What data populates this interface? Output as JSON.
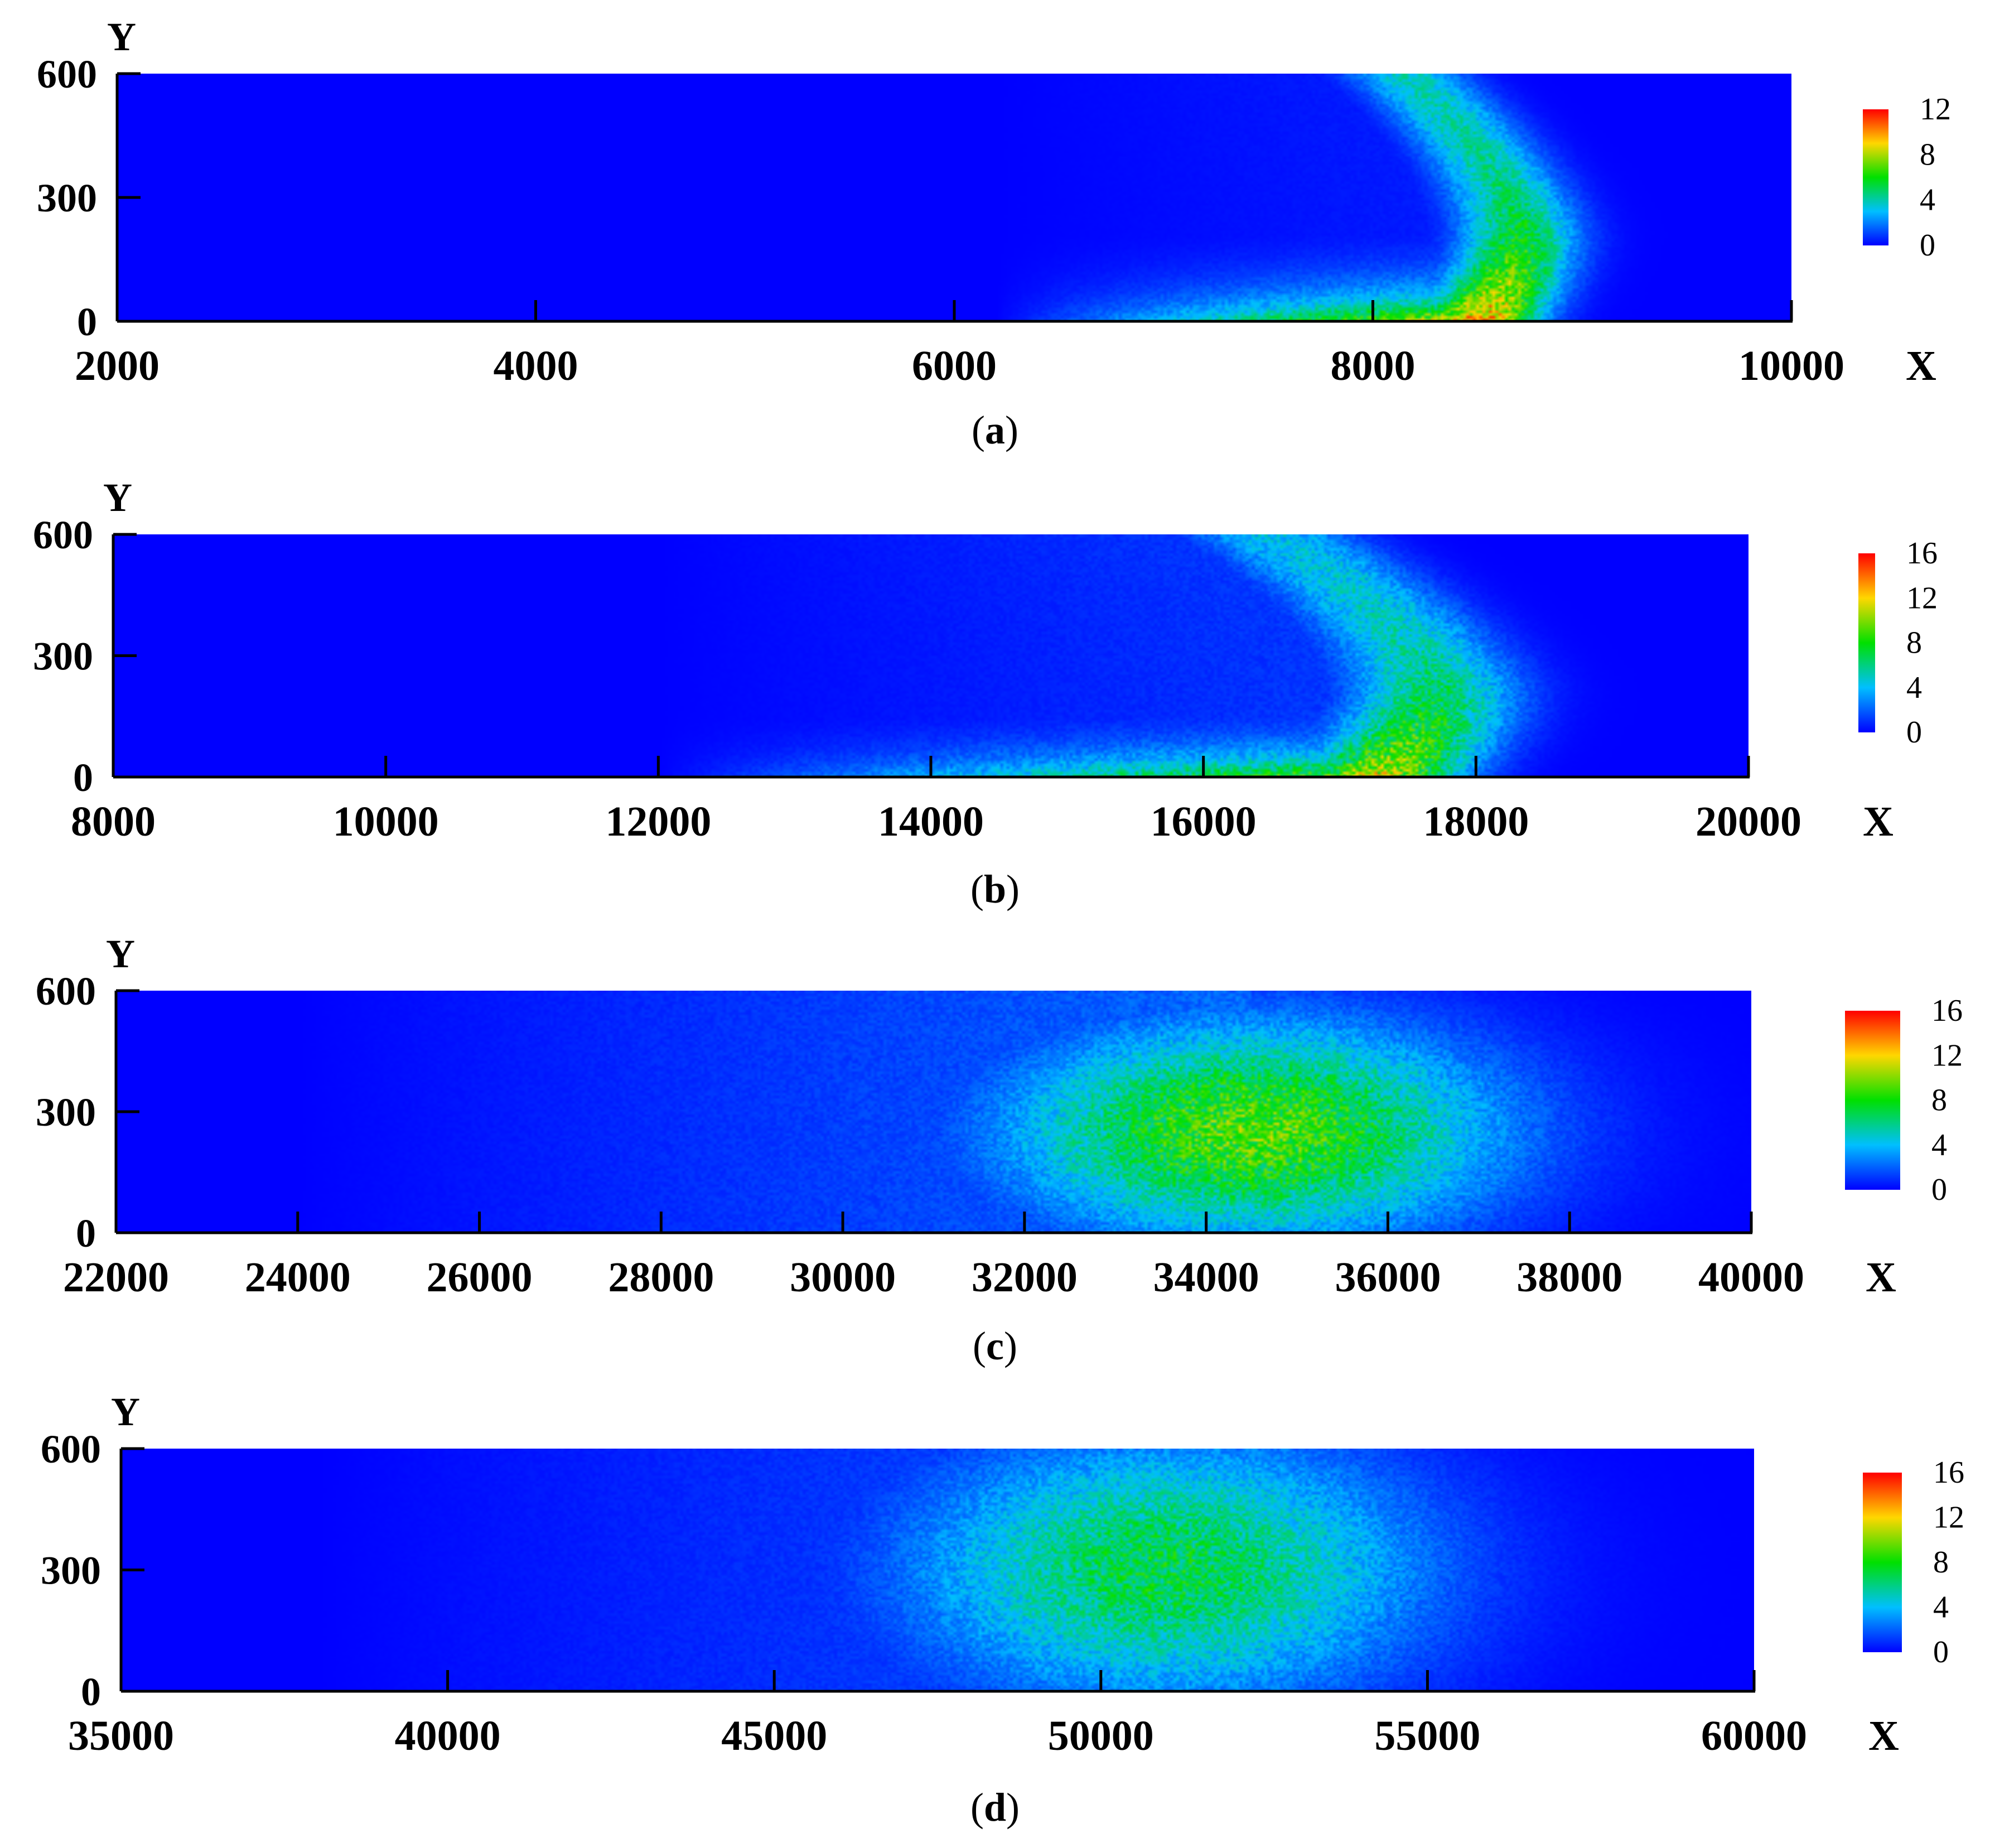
{
  "chart_data": [
    {
      "type": "heatmap",
      "panel_label": [
        "(",
        "a",
        ")"
      ],
      "xlabel": "X",
      "ylabel": "Y",
      "xlim": [
        2000,
        10000
      ],
      "ylim": [
        0,
        600
      ],
      "x_ticks": [
        2000,
        4000,
        6000,
        8000,
        10000
      ],
      "x_tick_labels": [
        "2000",
        "4000",
        "6000",
        "8000",
        "10000"
      ],
      "y_ticks": [
        0,
        300,
        600
      ],
      "y_tick_labels": [
        "0",
        "300",
        "600"
      ],
      "colorbar": {
        "min": 0,
        "max": 12,
        "ticks": [
          0,
          4,
          8,
          12
        ],
        "tick_labels": [
          "0",
          "4",
          "8",
          "12"
        ]
      },
      "field": {
        "peak_value": 10,
        "max_value": 12,
        "front_x": 8700,
        "tail_x": 6200,
        "arc_width_x": 500,
        "arc_thickness_y": 0.3,
        "interior_level": 0.05,
        "noise": 0.25
      }
    },
    {
      "type": "heatmap",
      "panel_label": [
        "(",
        "b",
        ")"
      ],
      "xlabel": "X",
      "ylabel": "Y",
      "xlim": [
        8000,
        20000
      ],
      "ylim": [
        0,
        600
      ],
      "x_ticks": [
        8000,
        10000,
        12000,
        14000,
        16000,
        18000,
        20000
      ],
      "x_tick_labels": [
        "8000",
        "10000",
        "12000",
        "14000",
        "16000",
        "18000",
        "20000"
      ],
      "y_ticks": [
        0,
        300,
        600
      ],
      "y_tick_labels": [
        "0",
        "300",
        "600"
      ],
      "colorbar": {
        "min": 0,
        "max": 16,
        "ticks": [
          0,
          4,
          8,
          12,
          16
        ],
        "tick_labels": [
          "0",
          "4",
          "8",
          "12",
          "16"
        ]
      },
      "field": {
        "peak_value": 11,
        "max_value": 16,
        "front_x": 17700,
        "tail_x": 12000,
        "arc_width_x": 1100,
        "arc_thickness_y": 0.35,
        "interior_level": 0.12,
        "noise": 0.3
      }
    },
    {
      "type": "heatmap",
      "panel_label": [
        "(",
        "c",
        ")"
      ],
      "xlabel": "X",
      "ylabel": "Y",
      "xlim": [
        22000,
        40000
      ],
      "ylim": [
        0,
        600
      ],
      "x_ticks": [
        22000,
        24000,
        26000,
        28000,
        30000,
        32000,
        34000,
        36000,
        38000,
        40000
      ],
      "x_tick_labels": [
        "22000",
        "24000",
        "26000",
        "28000",
        "30000",
        "32000",
        "34000",
        "36000",
        "38000",
        "40000"
      ],
      "y_ticks": [
        0,
        300,
        600
      ],
      "y_tick_labels": [
        "0",
        "300",
        "600"
      ],
      "colorbar": {
        "min": 0,
        "max": 16,
        "ticks": [
          0,
          4,
          8,
          12,
          16
        ],
        "tick_labels": [
          "0",
          "4",
          "8",
          "12",
          "16"
        ]
      },
      "field": {
        "peak_value": 9,
        "max_value": 16,
        "center_x": 34500,
        "center_y": 250,
        "spread_x": 2600,
        "spread_y": 260,
        "tail_x": 24000,
        "tail_level": 0.25,
        "noise": 0.3
      }
    },
    {
      "type": "heatmap",
      "panel_label": [
        "(",
        "d",
        ")"
      ],
      "xlabel": "X",
      "ylabel": "Y",
      "xlim": [
        35000,
        60000
      ],
      "ylim": [
        0,
        600
      ],
      "x_ticks": [
        35000,
        40000,
        45000,
        50000,
        55000,
        60000
      ],
      "x_tick_labels": [
        "35000",
        "40000",
        "45000",
        "50000",
        "55000",
        "60000"
      ],
      "y_ticks": [
        0,
        300,
        600
      ],
      "y_tick_labels": [
        "0",
        "300",
        "600"
      ],
      "colorbar": {
        "min": 0,
        "max": 16,
        "ticks": [
          0,
          4,
          8,
          12,
          16
        ],
        "tick_labels": [
          "0",
          "4",
          "8",
          "12",
          "16"
        ]
      },
      "field": {
        "peak_value": 7,
        "max_value": 16,
        "center_x": 51000,
        "center_y": 300,
        "spread_x": 3800,
        "spread_y": 320,
        "tail_x": 38000,
        "tail_level": 0.25,
        "noise": 0.3
      }
    }
  ]
}
